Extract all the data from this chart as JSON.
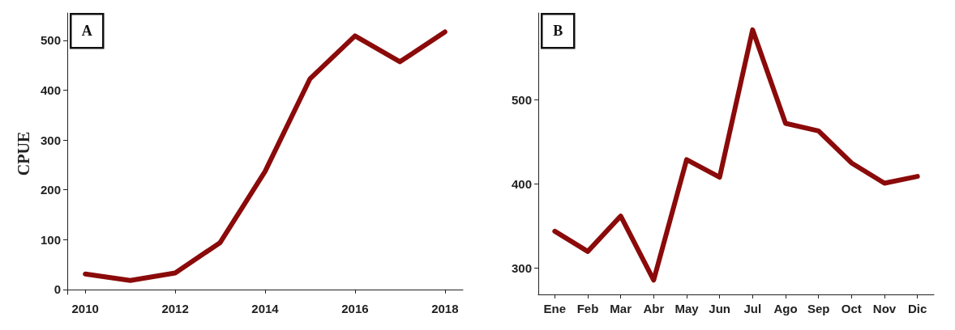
{
  "chart_data": [
    {
      "type": "line",
      "ylabel": "CPUE",
      "annotations": [
        "A"
      ],
      "x": [
        2010,
        2011,
        2012,
        2013,
        2014,
        2015,
        2016,
        2017,
        2018
      ],
      "series": [
        {
          "color": "#8b0a0a",
          "values": [
            31,
            18,
            33,
            94,
            237,
            423,
            509,
            457,
            517
          ]
        }
      ],
      "xlim": [
        2009.6,
        2018.4
      ],
      "xticks": [
        2010,
        2012,
        2014,
        2016,
        2018
      ],
      "ylim": [
        -10,
        555
      ],
      "yticks": [
        0,
        100,
        200,
        300,
        400,
        500
      ],
      "marker": "none",
      "line_style": "solid"
    },
    {
      "type": "line",
      "annotations": [
        "B"
      ],
      "categories": [
        "Ene",
        "Feb",
        "Mar",
        "Abr",
        "May",
        "Jun",
        "Jul",
        "Ago",
        "Sep",
        "Oct",
        "Nov",
        "Dic"
      ],
      "series": [
        {
          "color": "#8b0a0a",
          "values": [
            344,
            320,
            362,
            286,
            429,
            408,
            583,
            472,
            463,
            425,
            401,
            409
          ]
        }
      ],
      "ylim": [
        269,
        603
      ],
      "yticks": [
        300,
        400,
        500
      ],
      "marker": "none",
      "line_style": "solid"
    }
  ]
}
